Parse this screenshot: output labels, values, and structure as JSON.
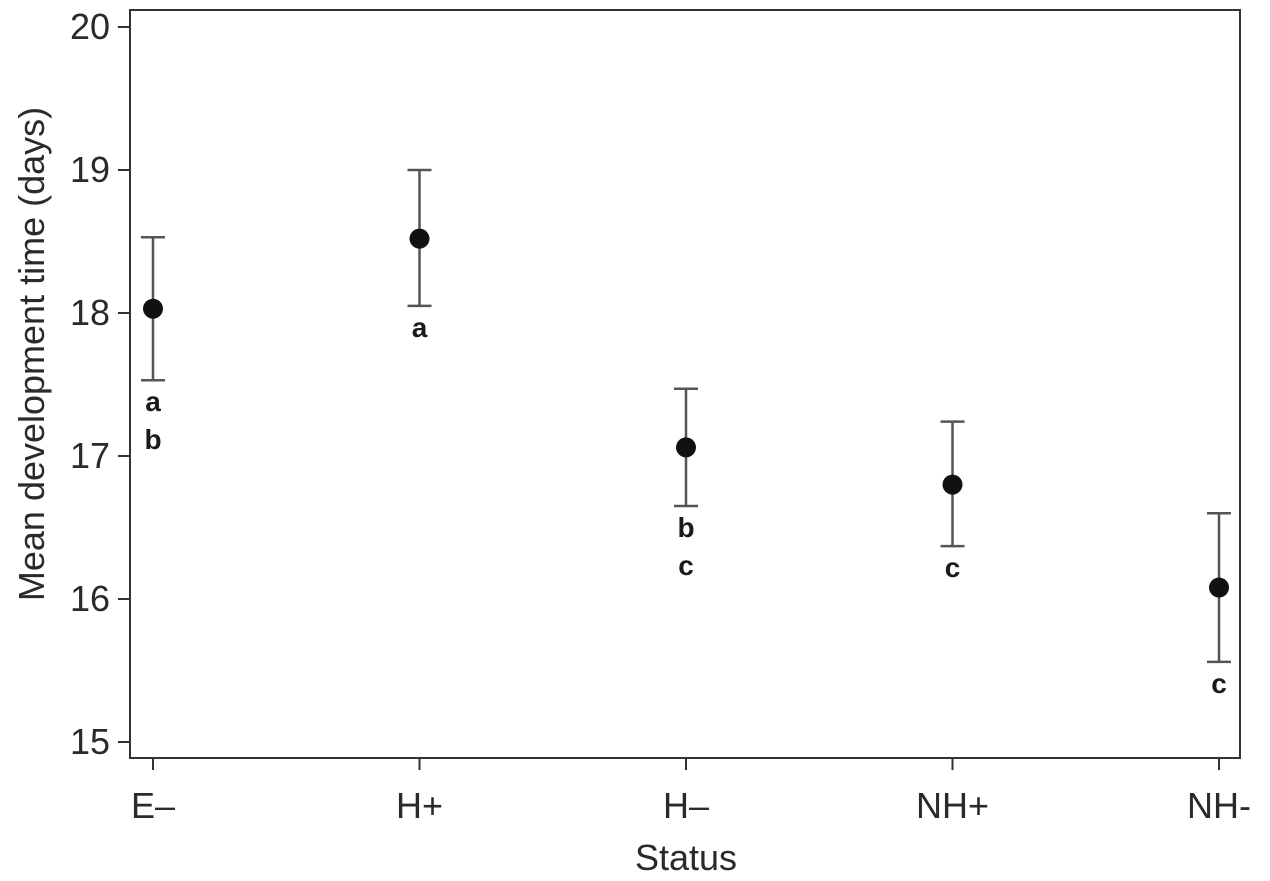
{
  "chart_data": {
    "type": "scatter",
    "title": "",
    "xlabel": "Status",
    "ylabel": "Mean development time (days)",
    "categories": [
      "E–",
      "H+",
      "H–",
      "NH+",
      "NH-"
    ],
    "ylim": [
      15,
      20
    ],
    "yticks": [
      "15",
      "16",
      "17",
      "18",
      "19",
      "20"
    ],
    "grid": false,
    "legend": "none",
    "series": [
      {
        "means": [
          18.03,
          18.52,
          17.06,
          16.8,
          16.08
        ],
        "lower": [
          17.53,
          18.05,
          16.65,
          16.37,
          15.56
        ],
        "upper": [
          18.53,
          19.0,
          17.47,
          17.24,
          16.6
        ]
      }
    ],
    "group_letters": [
      [
        "a",
        "b"
      ],
      [
        "a"
      ],
      [
        "b",
        "c"
      ],
      [
        "c"
      ],
      [
        "c"
      ]
    ],
    "colors": {
      "marker": "#111111",
      "errorbar": "#555555",
      "axis": "#333333"
    }
  }
}
